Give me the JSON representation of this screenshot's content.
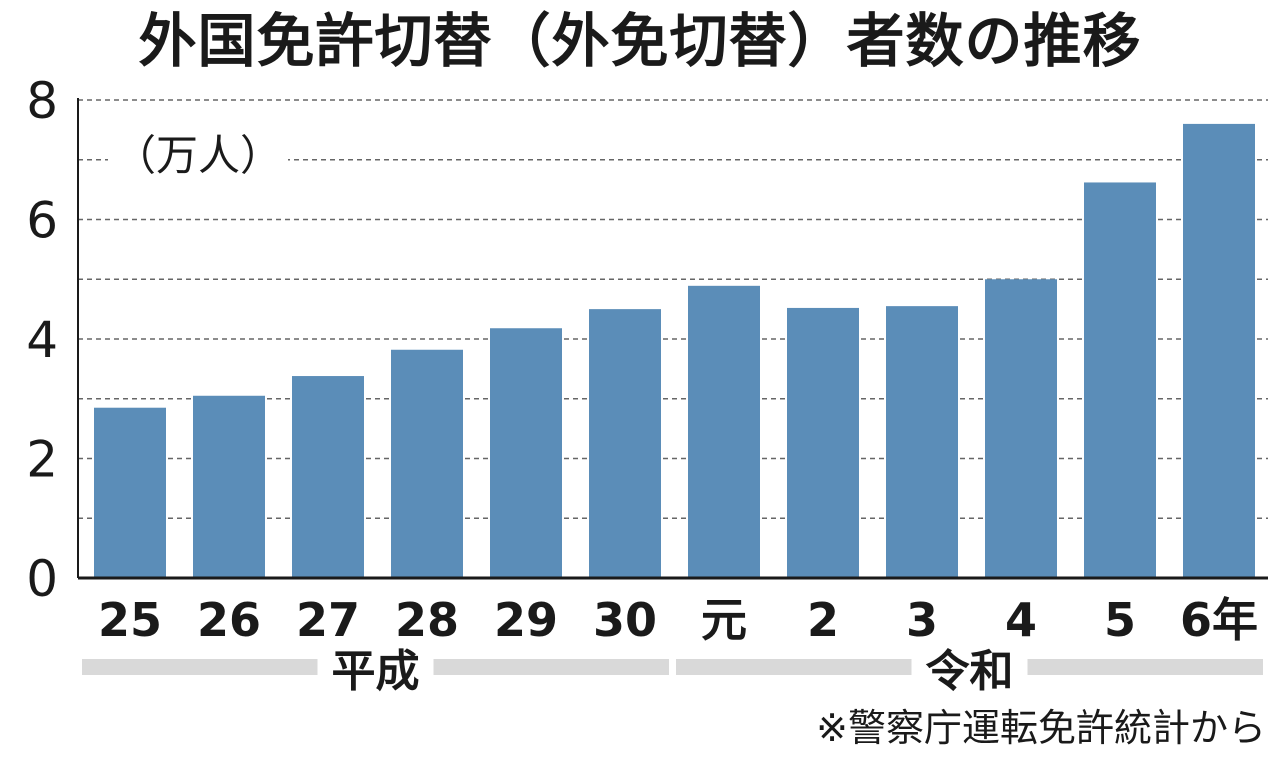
{
  "chart_data": {
    "type": "bar",
    "title": "外国免許切替（外免切替）者数の推移",
    "unit": "（万人）",
    "source": "※警察庁運転免許統計から",
    "categories": [
      "25",
      "26",
      "27",
      "28",
      "29",
      "30",
      "元",
      "2",
      "3",
      "4",
      "5",
      "6年"
    ],
    "values": [
      2.85,
      3.05,
      3.38,
      3.82,
      4.18,
      4.5,
      4.89,
      4.52,
      4.55,
      5.0,
      6.62,
      7.6
    ],
    "ylim": [
      0,
      8
    ],
    "yticks": [
      0,
      2,
      4,
      6,
      8
    ],
    "grid": true,
    "eras": [
      {
        "label": "平成",
        "from": "25",
        "to": "30"
      },
      {
        "label": "令和",
        "from": "元",
        "to": "6年"
      }
    ],
    "colors": {
      "bar": "#5b8db8",
      "era_band": "#d9d9d9",
      "grid": "#666666"
    }
  }
}
